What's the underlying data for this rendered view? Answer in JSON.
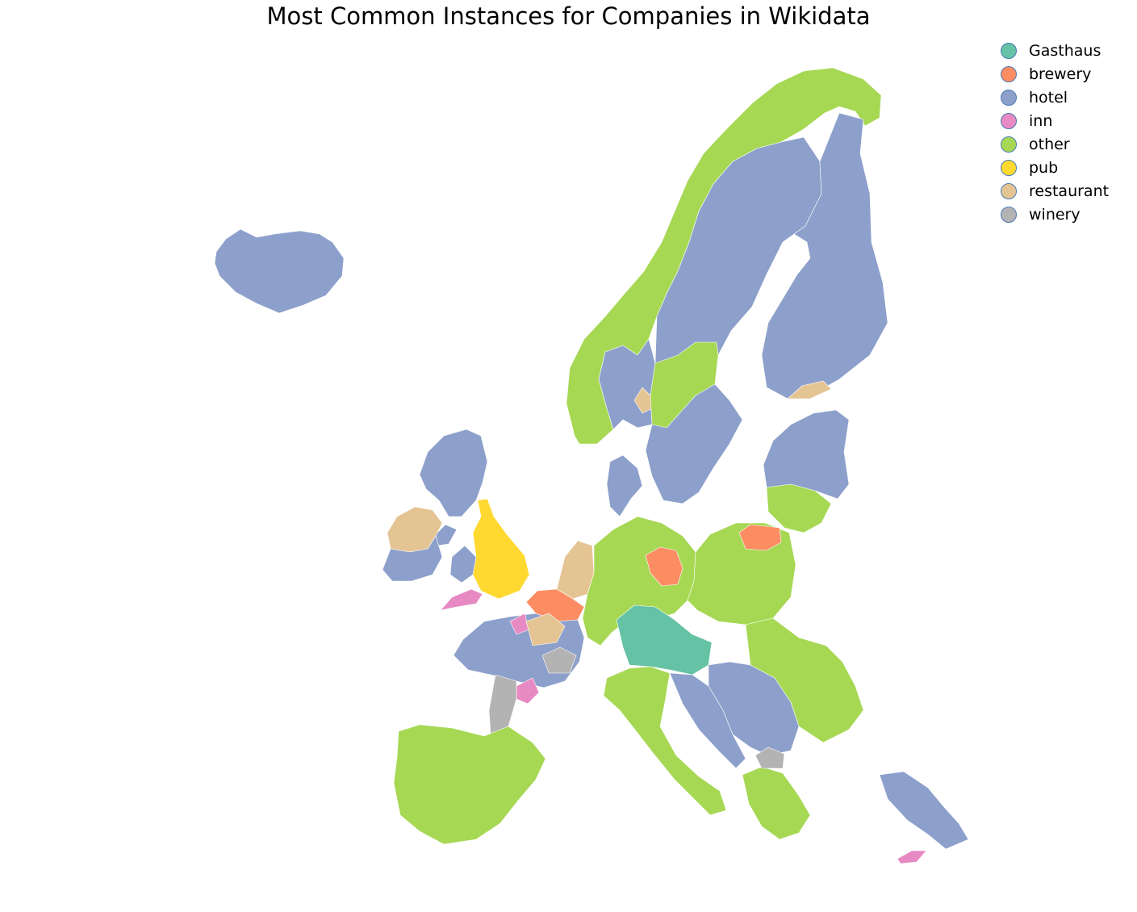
{
  "title": "Most Common Instances for Companies in Wikidata",
  "legend": [
    {
      "key": "Gasthaus",
      "label": "Gasthaus",
      "color": "#66c2a5"
    },
    {
      "key": "brewery",
      "label": "brewery",
      "color": "#fc8d62"
    },
    {
      "key": "hotel",
      "label": "hotel",
      "color": "#8da0cb"
    },
    {
      "key": "inn",
      "label": "inn",
      "color": "#e78ac3"
    },
    {
      "key": "other",
      "label": "other",
      "color": "#a6d854"
    },
    {
      "key": "pub",
      "label": "pub",
      "color": "#ffd92f"
    },
    {
      "key": "restaurant",
      "label": "restaurant",
      "color": "#e5c494"
    },
    {
      "key": "winery",
      "label": "winery",
      "color": "#b3b3b3"
    }
  ],
  "legend_placement": "top-right",
  "regions": [
    {
      "name": "Iceland",
      "category": "hotel"
    },
    {
      "name": "Norway west",
      "category": "other"
    },
    {
      "name": "Norway east",
      "category": "hotel"
    },
    {
      "name": "Norway Oslo",
      "category": "restaurant"
    },
    {
      "name": "Sweden",
      "category": "hotel"
    },
    {
      "name": "Sweden central",
      "category": "other"
    },
    {
      "name": "Finland",
      "category": "hotel"
    },
    {
      "name": "Finland Helsinki",
      "category": "restaurant"
    },
    {
      "name": "Estonia Latvia",
      "category": "hotel"
    },
    {
      "name": "Lithuania",
      "category": "other"
    },
    {
      "name": "Denmark",
      "category": "hotel"
    },
    {
      "name": "Scotland",
      "category": "hotel"
    },
    {
      "name": "Northern Ireland",
      "category": "hotel"
    },
    {
      "name": "Ireland",
      "category": "restaurant"
    },
    {
      "name": "Ireland south",
      "category": "hotel"
    },
    {
      "name": "England",
      "category": "pub"
    },
    {
      "name": "Wales",
      "category": "hotel"
    },
    {
      "name": "Cornwall",
      "category": "inn"
    },
    {
      "name": "Netherlands",
      "category": "restaurant"
    },
    {
      "name": "Belgium",
      "category": "brewery"
    },
    {
      "name": "Germany",
      "category": "other"
    },
    {
      "name": "Berlin",
      "category": "brewery"
    },
    {
      "name": "Bavaria Austria",
      "category": "Gasthaus"
    },
    {
      "name": "Poland",
      "category": "other"
    },
    {
      "name": "Podlaskie",
      "category": "brewery"
    },
    {
      "name": "France north",
      "category": "hotel"
    },
    {
      "name": "Normandy",
      "category": "inn"
    },
    {
      "name": "France center",
      "category": "inn"
    },
    {
      "name": "Bordeaux",
      "category": "winery"
    },
    {
      "name": "Champagne",
      "category": "restaurant"
    },
    {
      "name": "Burgundy",
      "category": "winery"
    },
    {
      "name": "Spain Portugal",
      "category": "other"
    },
    {
      "name": "Italy",
      "category": "other"
    },
    {
      "name": "Adriatic",
      "category": "hotel"
    },
    {
      "name": "Balkans",
      "category": "hotel"
    },
    {
      "name": "Romania",
      "category": "other"
    },
    {
      "name": "Greece",
      "category": "other"
    },
    {
      "name": "Macedonia",
      "category": "winery"
    },
    {
      "name": "Turkey west",
      "category": "hotel"
    },
    {
      "name": "Cyprus",
      "category": "inn"
    }
  ]
}
